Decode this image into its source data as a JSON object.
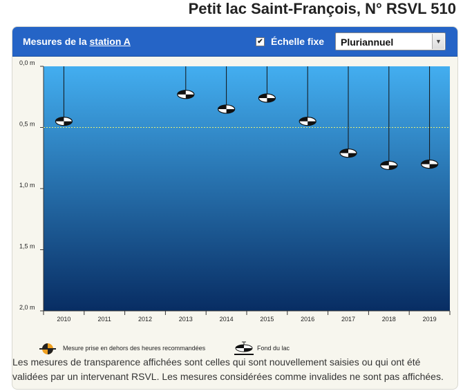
{
  "page": {
    "title": "Petit lac Saint-François, N° RSVL 510"
  },
  "header": {
    "station_prefix": "Mesures de la ",
    "station_link": "station A",
    "fixed_scale_label": "Échelle fixe",
    "fixed_scale_checked": true,
    "period_select": {
      "value": "Pluriannuel"
    }
  },
  "chart_data": {
    "type": "scatter",
    "title": "",
    "xlabel": "",
    "ylabel": "",
    "y_axis": "depth (inverted, 0 at top)",
    "ylim": [
      0,
      2.0
    ],
    "y_ticks": [
      "0,0 m",
      "0,5 m",
      "1,0 m",
      "1,5 m",
      "2,0 m"
    ],
    "categories": [
      "2010",
      "2011",
      "2012",
      "2013",
      "2014",
      "2015",
      "2016",
      "2017",
      "2018",
      "2019"
    ],
    "values": [
      0.45,
      null,
      null,
      0.23,
      0.35,
      0.26,
      0.45,
      0.71,
      0.81,
      0.8
    ],
    "reference_line": 0.5,
    "marker": "secchi-disk",
    "colors": {
      "water_top": "#43aef0",
      "water_bottom": "#082d63",
      "reference_line": "#e6f07a",
      "header": "#2564c6"
    }
  },
  "legend": {
    "outside_hours": "Mesure prise en dehors des heures recommandées",
    "lake_bottom": "Fond du lac",
    "outside_hours_color": "#f0a020"
  },
  "note": "Les mesures de transparence affichées sont celles qui sont nouvellement saisies ou qui ont été validées par un intervenant RSVL. Les mesures considérées comme invalides ne sont pas affichées."
}
